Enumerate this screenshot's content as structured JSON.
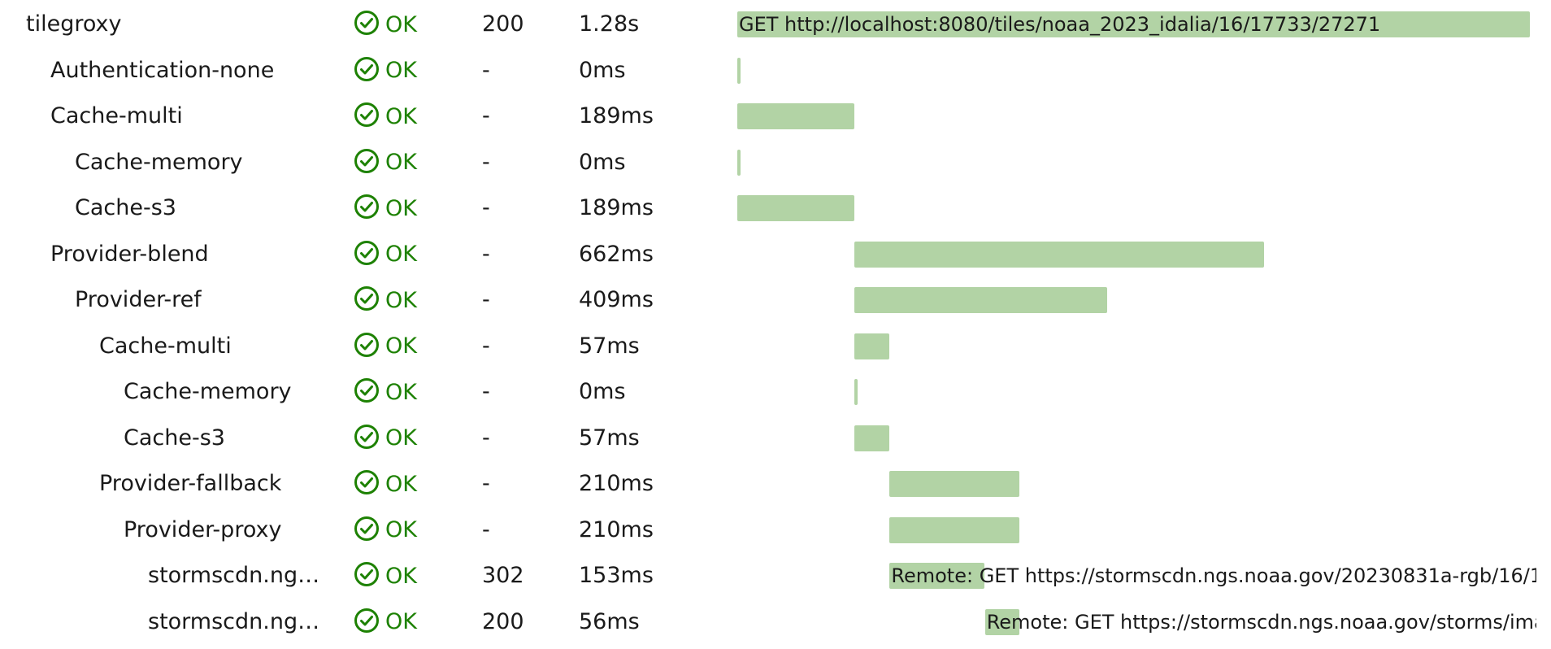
{
  "colors": {
    "ok": "#1d8102",
    "bar": "#b2d3a5"
  },
  "icons": {
    "status": "check-circle-icon"
  },
  "spans": [
    {
      "name": "tilegroxy",
      "depth": 0,
      "status": "OK",
      "code": "200",
      "duration": "1.28s",
      "start_ms": 0,
      "duration_ms": 1280,
      "label": "GET http://localhost:8080/tiles/noaa_2023_idalia/16/17733/27271"
    },
    {
      "name": "Authentication-none",
      "depth": 1,
      "status": "OK",
      "code": "-",
      "duration": "0ms",
      "start_ms": 0,
      "duration_ms": 0,
      "label": ""
    },
    {
      "name": "Cache-multi",
      "depth": 1,
      "status": "OK",
      "code": "-",
      "duration": "189ms",
      "start_ms": 0,
      "duration_ms": 189,
      "label": ""
    },
    {
      "name": "Cache-memory",
      "depth": 2,
      "status": "OK",
      "code": "-",
      "duration": "0ms",
      "start_ms": 0,
      "duration_ms": 0,
      "label": ""
    },
    {
      "name": "Cache-s3",
      "depth": 2,
      "status": "OK",
      "code": "-",
      "duration": "189ms",
      "start_ms": 0,
      "duration_ms": 189,
      "label": ""
    },
    {
      "name": "Provider-blend",
      "depth": 1,
      "status": "OK",
      "code": "-",
      "duration": "662ms",
      "start_ms": 189,
      "duration_ms": 662,
      "label": ""
    },
    {
      "name": "Provider-ref",
      "depth": 2,
      "status": "OK",
      "code": "-",
      "duration": "409ms",
      "start_ms": 189,
      "duration_ms": 409,
      "label": ""
    },
    {
      "name": "Cache-multi",
      "depth": 3,
      "status": "OK",
      "code": "-",
      "duration": "57ms",
      "start_ms": 189,
      "duration_ms": 57,
      "label": ""
    },
    {
      "name": "Cache-memory",
      "depth": 4,
      "status": "OK",
      "code": "-",
      "duration": "0ms",
      "start_ms": 189,
      "duration_ms": 0,
      "label": ""
    },
    {
      "name": "Cache-s3",
      "depth": 4,
      "status": "OK",
      "code": "-",
      "duration": "57ms",
      "start_ms": 189,
      "duration_ms": 57,
      "label": ""
    },
    {
      "name": "Provider-fallback",
      "depth": 3,
      "status": "OK",
      "code": "-",
      "duration": "210ms",
      "start_ms": 246,
      "duration_ms": 210,
      "label": ""
    },
    {
      "name": "Provider-proxy",
      "depth": 4,
      "status": "OK",
      "code": "-",
      "duration": "210ms",
      "start_ms": 246,
      "duration_ms": 210,
      "label": ""
    },
    {
      "name": "stormscdn.ng…",
      "depth": 5,
      "status": "OK",
      "code": "302",
      "duration": "153ms",
      "start_ms": 246,
      "duration_ms": 153,
      "label": "Remote: GET https://stormscdn.ngs.noaa.gov/20230831a-rgb/16/1…"
    },
    {
      "name": "stormscdn.ng…",
      "depth": 5,
      "status": "OK",
      "code": "200",
      "duration": "56ms",
      "start_ms": 400,
      "duration_ms": 56,
      "label": "Remote: GET https://stormscdn.ngs.noaa.gov/storms/ima…"
    }
  ]
}
